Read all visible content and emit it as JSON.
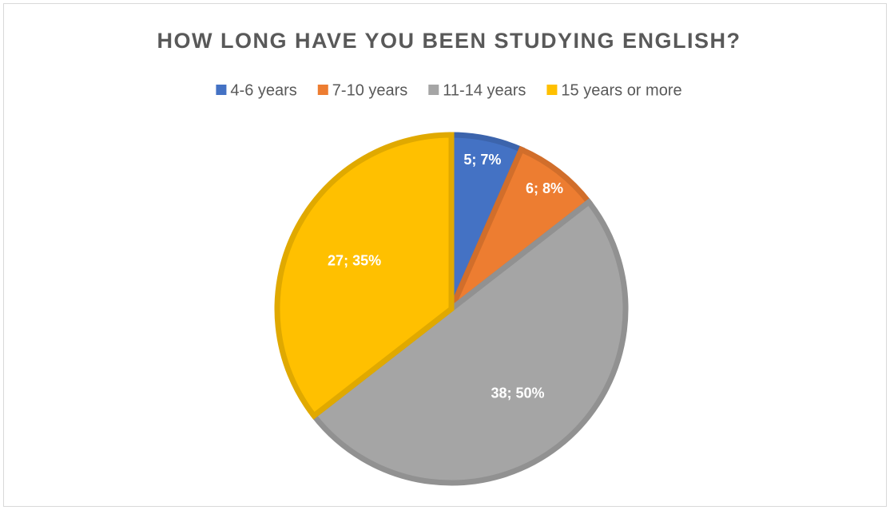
{
  "chart_data": {
    "type": "pie",
    "title": "HOW LONG HAVE YOU BEEN STUDYING ENGLISH?",
    "categories": [
      "4-6 years",
      "7-10 years",
      "11-14 years",
      "15 years or more"
    ],
    "values": [
      5,
      6,
      38,
      27
    ],
    "value_labels": [
      "5; 7%",
      "6; 8%",
      "38; 50%",
      "27; 35%"
    ],
    "colors": [
      "#4472c4",
      "#ed7d31",
      "#a5a5a5",
      "#ffc000"
    ],
    "legend": "top"
  }
}
